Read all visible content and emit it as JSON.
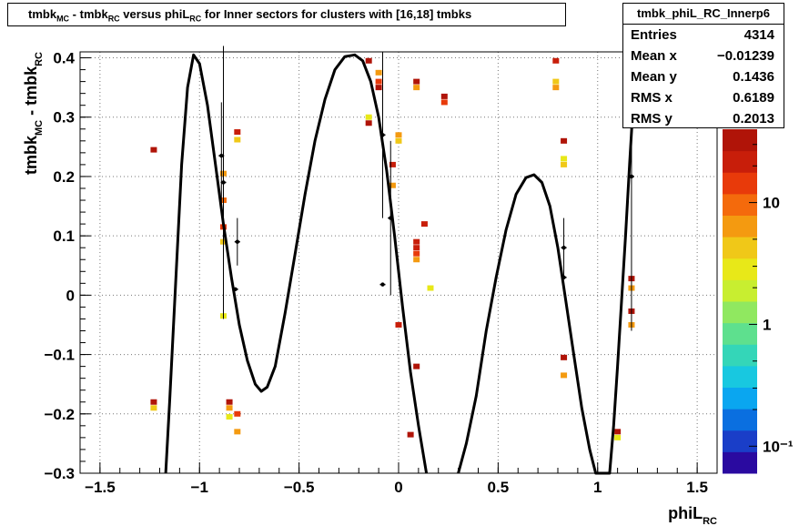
{
  "title": {
    "p1": "tmbk",
    "s1": "MC",
    "p2": " - tmbk",
    "s2": "RC",
    "p3": " versus phiL",
    "s3": "RC",
    "p4": " for Inner sectors for clusters with [16,18] tmbks"
  },
  "stats": {
    "name": "tmbk_phiL_RC_Innerp6",
    "rows": [
      {
        "label": "Entries",
        "value": "4314"
      },
      {
        "label": "Mean x",
        "value": "−0.01239"
      },
      {
        "label": "Mean y",
        "value": "0.1436"
      },
      {
        "label": "RMS x",
        "value": "0.6189"
      },
      {
        "label": "RMS y",
        "value": "0.2013"
      }
    ]
  },
  "colors": {
    "palette": [
      "#2a0aa0",
      "#1a3ec8",
      "#0a6fe0",
      "#0aa6f0",
      "#18c8e0",
      "#34d6b8",
      "#5ee08e",
      "#90e860",
      "#c8ee30",
      "#e8e818",
      "#f0c818",
      "#f49a10",
      "#f46a0c",
      "#e83a0a",
      "#c81e0a",
      "#b01408"
    ]
  },
  "chart_data": {
    "type": "heatmap",
    "xlabel": {
      "main": "phiL",
      "sub": "RC"
    },
    "ylabel": {
      "main1": "tmbk",
      "sub1": "MC",
      "main2": " - tmbk",
      "sub2": "RC"
    },
    "xlim": [
      -1.6,
      1.6
    ],
    "ylim": [
      -0.3,
      0.41
    ],
    "xticks": [
      -1.5,
      -1,
      -0.5,
      0,
      0.5,
      1,
      1.5
    ],
    "xtick_labels": [
      "−1.5",
      "−1",
      "−0.5",
      "0",
      "0.5",
      "1",
      "1.5"
    ],
    "yticks": [
      -0.3,
      -0.2,
      -0.1,
      0,
      0.1,
      0.2,
      0.3,
      0.4
    ],
    "ytick_labels": [
      "−0.3",
      "−0.2",
      "−0.1",
      "0",
      "0.1",
      "0.2",
      "0.3",
      "0.4"
    ],
    "grid": true,
    "zscale": "log",
    "zlim": [
      0.06,
      40
    ],
    "z_tick_labels": [
      {
        "value": 10,
        "label": "10"
      },
      {
        "value": 1,
        "label": "1"
      },
      {
        "value": 0.1,
        "label": "10⁻¹"
      }
    ],
    "cells": [
      {
        "x": -1.23,
        "y": 0.245,
        "z": 40
      },
      {
        "x": -1.23,
        "y": -0.18,
        "z": 30
      },
      {
        "x": -1.23,
        "y": -0.19,
        "z": 4
      },
      {
        "x": -0.88,
        "y": 0.205,
        "z": 6
      },
      {
        "x": -0.88,
        "y": 0.16,
        "z": 8
      },
      {
        "x": -0.88,
        "y": 0.115,
        "z": 12
      },
      {
        "x": -0.88,
        "y": 0.09,
        "z": 4
      },
      {
        "x": -0.88,
        "y": -0.035,
        "z": 3
      },
      {
        "x": -0.85,
        "y": -0.18,
        "z": 30
      },
      {
        "x": -0.85,
        "y": -0.19,
        "z": 6
      },
      {
        "x": -0.85,
        "y": -0.205,
        "z": 3
      },
      {
        "x": -0.81,
        "y": 0.275,
        "z": 25
      },
      {
        "x": -0.81,
        "y": 0.262,
        "z": 5
      },
      {
        "x": -0.81,
        "y": -0.2,
        "z": 12
      },
      {
        "x": -0.81,
        "y": -0.23,
        "z": 6
      },
      {
        "x": -0.15,
        "y": 0.395,
        "z": 30
      },
      {
        "x": -0.15,
        "y": 0.3,
        "z": 3
      },
      {
        "x": -0.15,
        "y": 0.29,
        "z": 30
      },
      {
        "x": -0.1,
        "y": 0.375,
        "z": 6
      },
      {
        "x": -0.1,
        "y": 0.36,
        "z": 12
      },
      {
        "x": -0.1,
        "y": 0.35,
        "z": 40
      },
      {
        "x": -0.03,
        "y": 0.22,
        "z": 25
      },
      {
        "x": -0.03,
        "y": 0.185,
        "z": 6
      },
      {
        "x": 0.0,
        "y": 0.27,
        "z": 6
      },
      {
        "x": 0.0,
        "y": 0.26,
        "z": 4
      },
      {
        "x": 0.0,
        "y": -0.05,
        "z": 25
      },
      {
        "x": 0.09,
        "y": 0.36,
        "z": 30
      },
      {
        "x": 0.09,
        "y": 0.35,
        "z": 6
      },
      {
        "x": 0.09,
        "y": 0.09,
        "z": 25
      },
      {
        "x": 0.09,
        "y": 0.08,
        "z": 20
      },
      {
        "x": 0.09,
        "y": 0.07,
        "z": 12
      },
      {
        "x": 0.09,
        "y": 0.06,
        "z": 6
      },
      {
        "x": 0.09,
        "y": -0.12,
        "z": 30
      },
      {
        "x": 0.06,
        "y": -0.235,
        "z": 30
      },
      {
        "x": 0.13,
        "y": 0.12,
        "z": 25
      },
      {
        "x": 0.16,
        "y": 0.012,
        "z": 3
      },
      {
        "x": 0.23,
        "y": 0.335,
        "z": 40
      },
      {
        "x": 0.23,
        "y": 0.325,
        "z": 12
      },
      {
        "x": 0.79,
        "y": 0.395,
        "z": 25
      },
      {
        "x": 0.79,
        "y": 0.36,
        "z": 4
      },
      {
        "x": 0.79,
        "y": 0.35,
        "z": 6
      },
      {
        "x": 0.83,
        "y": 0.26,
        "z": 30
      },
      {
        "x": 0.83,
        "y": 0.23,
        "z": 3
      },
      {
        "x": 0.83,
        "y": 0.22,
        "z": 4
      },
      {
        "x": 0.83,
        "y": -0.105,
        "z": 30
      },
      {
        "x": 0.83,
        "y": -0.135,
        "z": 6
      },
      {
        "x": 1.1,
        "y": -0.23,
        "z": 40
      },
      {
        "x": 1.1,
        "y": -0.24,
        "z": 3
      },
      {
        "x": 1.17,
        "y": 0.028,
        "z": 30
      },
      {
        "x": 1.17,
        "y": 0.012,
        "z": 6
      },
      {
        "x": 1.17,
        "y": -0.027,
        "z": 30
      },
      {
        "x": 1.17,
        "y": -0.05,
        "z": 6
      }
    ],
    "profile": [
      {
        "x": -0.89,
        "y": 0.235,
        "err": 0.09
      },
      {
        "x": -0.88,
        "y": 0.19,
        "err": 0.23
      },
      {
        "x": -0.81,
        "y": 0.09,
        "err": 0.04
      },
      {
        "x": -0.82,
        "y": 0.01,
        "err": 0.0
      },
      {
        "x": -0.08,
        "y": 0.018,
        "err": 0.0
      },
      {
        "x": -0.08,
        "y": 0.27,
        "err": 0.14
      },
      {
        "x": -0.04,
        "y": 0.13,
        "err": 0.13
      },
      {
        "x": 0.83,
        "y": 0.08,
        "err": 0.05
      },
      {
        "x": 0.83,
        "y": 0.03,
        "err": 0.0
      },
      {
        "x": 1.17,
        "y": 0.2,
        "err": 0.26
      }
    ],
    "fit_curve": [
      [
        -1.17,
        -0.3
      ],
      [
        -1.15,
        -0.18
      ],
      [
        -1.12,
        0.02
      ],
      [
        -1.09,
        0.22
      ],
      [
        -1.06,
        0.35
      ],
      [
        -1.03,
        0.405
      ],
      [
        -1.0,
        0.39
      ],
      [
        -0.96,
        0.32
      ],
      [
        -0.92,
        0.22
      ],
      [
        -0.88,
        0.12
      ],
      [
        -0.84,
        0.03
      ],
      [
        -0.8,
        -0.05
      ],
      [
        -0.76,
        -0.11
      ],
      [
        -0.72,
        -0.15
      ],
      [
        -0.69,
        -0.162
      ],
      [
        -0.66,
        -0.155
      ],
      [
        -0.62,
        -0.12
      ],
      [
        -0.57,
        -0.03
      ],
      [
        -0.52,
        0.07
      ],
      [
        -0.47,
        0.17
      ],
      [
        -0.42,
        0.26
      ],
      [
        -0.37,
        0.33
      ],
      [
        -0.32,
        0.38
      ],
      [
        -0.27,
        0.402
      ],
      [
        -0.22,
        0.405
      ],
      [
        -0.18,
        0.395
      ],
      [
        -0.14,
        0.36
      ],
      [
        -0.1,
        0.3
      ],
      [
        -0.06,
        0.21
      ],
      [
        -0.02,
        0.1
      ],
      [
        0.02,
        -0.02
      ],
      [
        0.06,
        -0.13
      ],
      [
        0.1,
        -0.22
      ],
      [
        0.14,
        -0.3
      ],
      [
        0.3,
        -0.3
      ],
      [
        0.34,
        -0.25
      ],
      [
        0.39,
        -0.17
      ],
      [
        0.44,
        -0.06
      ],
      [
        0.49,
        0.03
      ],
      [
        0.54,
        0.11
      ],
      [
        0.59,
        0.17
      ],
      [
        0.64,
        0.198
      ],
      [
        0.68,
        0.203
      ],
      [
        0.72,
        0.19
      ],
      [
        0.76,
        0.15
      ],
      [
        0.8,
        0.08
      ],
      [
        0.84,
        -0.01
      ],
      [
        0.88,
        -0.1
      ],
      [
        0.92,
        -0.19
      ],
      [
        0.96,
        -0.26
      ],
      [
        0.99,
        -0.3
      ],
      [
        1.06,
        -0.3
      ],
      [
        1.08,
        -0.22
      ],
      [
        1.1,
        -0.12
      ],
      [
        1.12,
        -0.01
      ],
      [
        1.14,
        0.1
      ],
      [
        1.16,
        0.22
      ],
      [
        1.18,
        0.33
      ],
      [
        1.195,
        0.41
      ]
    ]
  }
}
